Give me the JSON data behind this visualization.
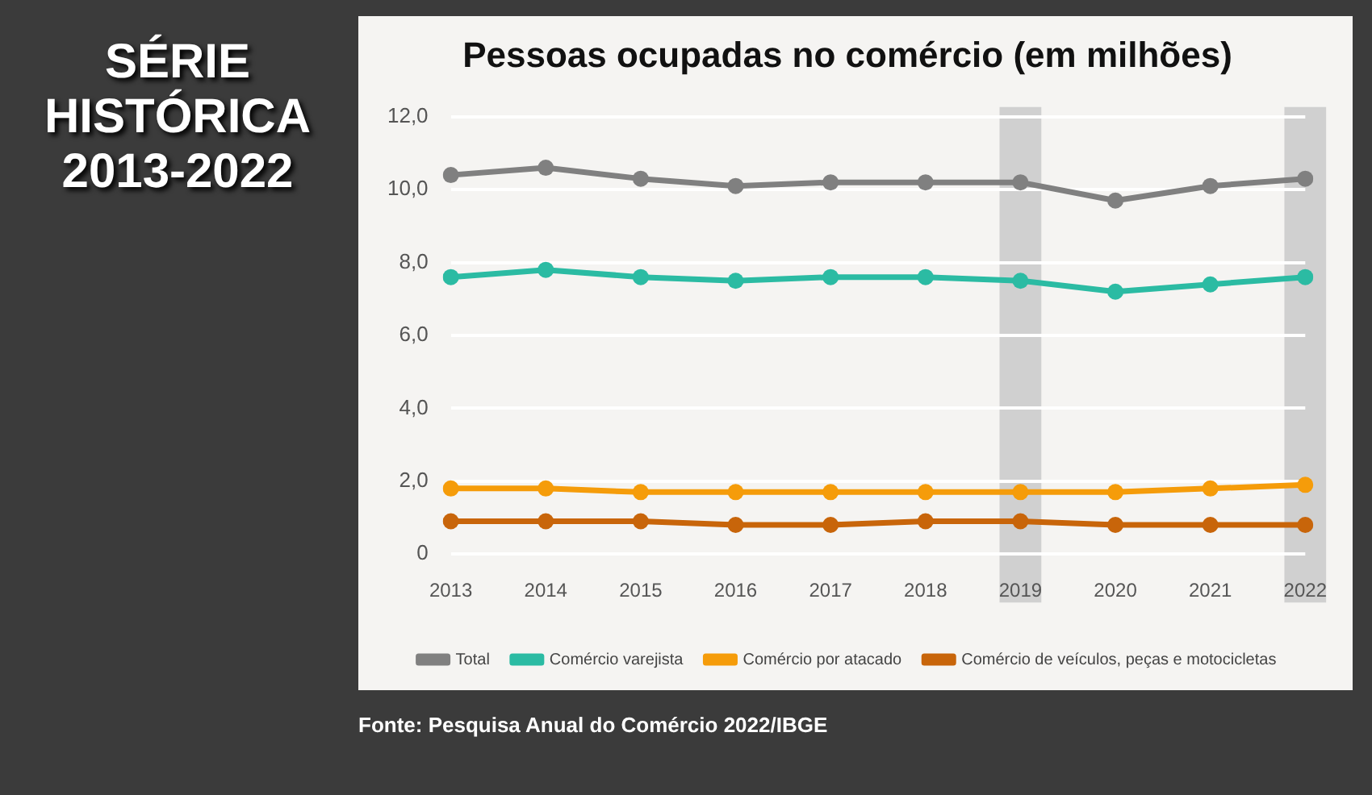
{
  "chart_data": {
    "type": "line",
    "title": "Pessoas ocupadas no comércio (em milhões)",
    "categories": [
      "2013",
      "2014",
      "2015",
      "2016",
      "2017",
      "2018",
      "2019",
      "2020",
      "2021",
      "2022"
    ],
    "series": [
      {
        "name": "Total",
        "color": "#808080",
        "values": [
          10.4,
          10.6,
          10.3,
          10.1,
          10.2,
          10.2,
          10.2,
          9.7,
          10.1,
          10.3
        ]
      },
      {
        "name": "Comércio varejista",
        "color": "#2bbba3",
        "values": [
          7.6,
          7.8,
          7.6,
          7.5,
          7.6,
          7.6,
          7.5,
          7.2,
          7.4,
          7.6
        ]
      },
      {
        "name": "Comércio por atacado",
        "color": "#f59c0a",
        "values": [
          1.8,
          1.8,
          1.7,
          1.7,
          1.7,
          1.7,
          1.7,
          1.7,
          1.8,
          1.9
        ]
      },
      {
        "name": "Comércio de veículos, peças e motocicletas",
        "color": "#c8650a",
        "values": [
          0.9,
          0.9,
          0.9,
          0.8,
          0.8,
          0.9,
          0.9,
          0.8,
          0.8,
          0.8
        ]
      }
    ],
    "ylim": [
      0,
      12
    ],
    "yticks": [
      0,
      {
        "value": 2,
        "label": "2,0"
      },
      {
        "value": 4,
        "label": "4,0"
      },
      {
        "value": 6,
        "label": "6,0"
      },
      {
        "value": 8,
        "label": "8,0"
      },
      {
        "value": 10,
        "label": "10,0"
      },
      {
        "value": 12,
        "label": "12,0"
      }
    ],
    "bands": [
      {
        "axis": "x",
        "from": "2019",
        "to": "2019",
        "color": "#d0d0d0"
      },
      {
        "axis": "x",
        "from": "2022",
        "to": "2022",
        "color": "#d0d0d0"
      }
    ],
    "grid": "y",
    "legend": "bottom",
    "marker": "circle",
    "line_style": "solid",
    "annotations": [
      "SÉRIE\nHISTÓRICA\n2013-2022",
      "Fonte: Pesquisa Anual do Comércio 2022/IBGE"
    ]
  }
}
